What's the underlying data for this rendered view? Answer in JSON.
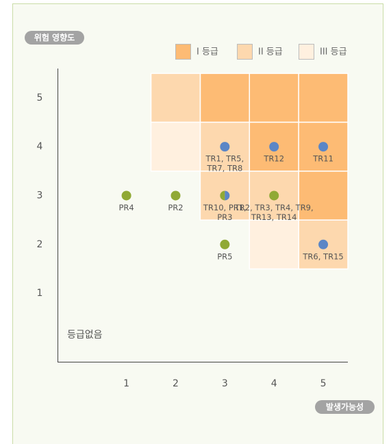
{
  "chart_data": {
    "type": "risk-matrix",
    "y_label": "위험 영향도",
    "x_label": "발생가능성",
    "no_grade_label": "등급없음",
    "xlim": [
      -0.4,
      5.5
    ],
    "ylim": [
      -0.4,
      5.6
    ],
    "xticks": [
      1,
      2,
      3,
      4,
      5
    ],
    "yticks": [
      1,
      2,
      3,
      4,
      5
    ],
    "legend_position": "top-right",
    "grades": [
      {
        "name": "I 등급",
        "color": "#fdbb74",
        "cells": [
          [
            3,
            5
          ],
          [
            4,
            5
          ],
          [
            5,
            5
          ],
          [
            4,
            4
          ],
          [
            5,
            4
          ],
          [
            5,
            3
          ]
        ]
      },
      {
        "name": "II 등급",
        "color": "#fdd8ae",
        "cells": [
          [
            2,
            5
          ],
          [
            3,
            4
          ],
          [
            3,
            3
          ],
          [
            4,
            3
          ],
          [
            5,
            2
          ]
        ]
      },
      {
        "name": "III 등급",
        "color": "#fff0df",
        "cells": [
          [
            2,
            4
          ],
          [
            4,
            2
          ]
        ]
      }
    ],
    "points": [
      {
        "x": 1,
        "y": 3,
        "colors": [
          "#90a935"
        ],
        "labels": [
          "PR4"
        ]
      },
      {
        "x": 2,
        "y": 3,
        "colors": [
          "#90a935"
        ],
        "labels": [
          "PR2"
        ]
      },
      {
        "x": 3,
        "y": 4,
        "colors": [
          "#5b86c6"
        ],
        "labels": [
          "TR1, TR5,",
          "TR7, TR8"
        ]
      },
      {
        "x": 4,
        "y": 4,
        "colors": [
          "#5b86c6"
        ],
        "labels": [
          "TR12"
        ]
      },
      {
        "x": 5,
        "y": 4,
        "colors": [
          "#5b86c6"
        ],
        "labels": [
          "TR11"
        ]
      },
      {
        "x": 3,
        "y": 3,
        "colors": [
          "#90a935",
          "#5b86c6"
        ],
        "labels": [
          "TR10, PR1,",
          "PR3"
        ]
      },
      {
        "x": 4,
        "y": 3,
        "colors": [
          "#90a935"
        ],
        "labels": [
          "TR2, TR3, TR4, TR9,",
          "TR13, TR14"
        ]
      },
      {
        "x": 3,
        "y": 2,
        "colors": [
          "#90a935"
        ],
        "labels": [
          "PR5"
        ]
      },
      {
        "x": 5,
        "y": 2,
        "colors": [
          "#5b86c6"
        ],
        "labels": [
          "TR6, TR15"
        ]
      }
    ]
  }
}
